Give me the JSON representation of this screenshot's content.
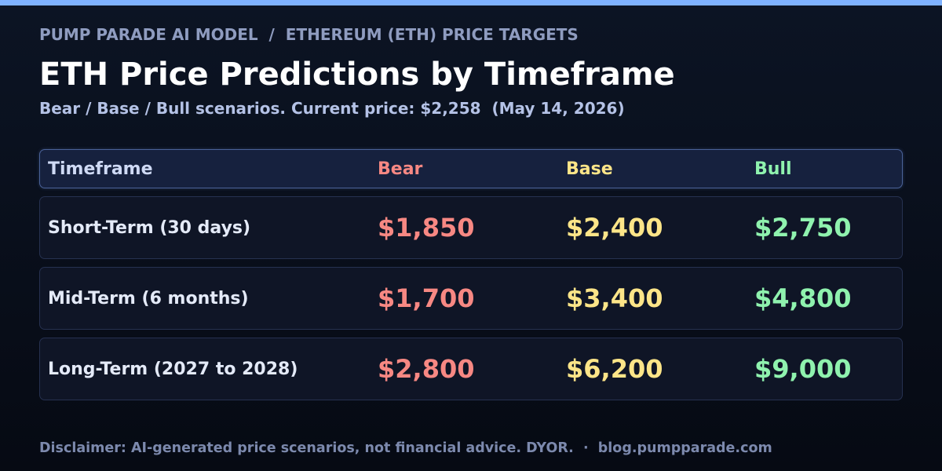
{
  "accent_color": "#7fb2ff",
  "breadcrumb": "PUMP PARADE AI MODEL  /  ETHEREUM (ETH) PRICE TARGETS",
  "title": "ETH Price Predictions by Timeframe",
  "subtitle": "Bear / Base / Bull scenarios. Current price: $2,258  (May 14, 2026)",
  "table": {
    "headers": {
      "timeframe": "Timeframe",
      "bear": "Bear",
      "base": "Base",
      "bull": "Bull"
    },
    "colors": {
      "bear": "#f78883",
      "base": "#fde588",
      "bull": "#8ff2ae"
    },
    "rows": [
      {
        "timeframe": "Short-Term (30 days)",
        "bear": "$1,850",
        "base": "$2,400",
        "bull": "$2,750"
      },
      {
        "timeframe": "Mid-Term (6 months)",
        "bear": "$1,700",
        "base": "$3,400",
        "bull": "$4,800"
      },
      {
        "timeframe": "Long-Term (2027 to 2028)",
        "bear": "$2,800",
        "base": "$6,200",
        "bull": "$9,000"
      }
    ]
  },
  "disclaimer": "Disclaimer: AI-generated price scenarios, not financial advice. DYOR.  ·  blog.pumpparade.com"
}
